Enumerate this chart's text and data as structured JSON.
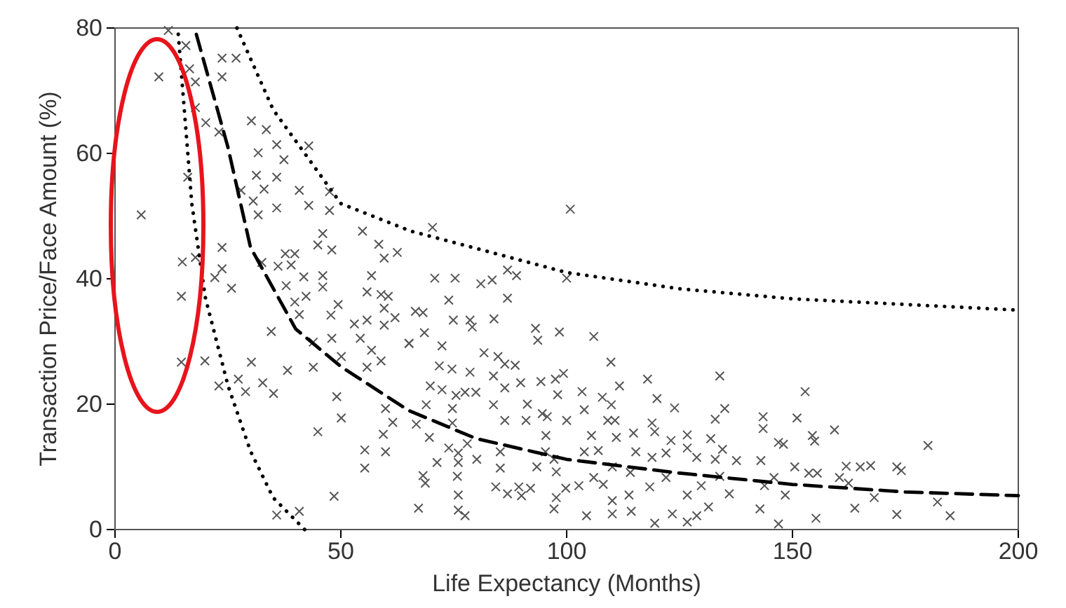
{
  "chart_data": {
    "type": "scatter",
    "xlabel": "Life Expectancy (Months)",
    "ylabel": "Transaction Price/Face Amount (%)",
    "xlim": [
      0,
      200
    ],
    "xticks": [
      0,
      50,
      100,
      150,
      200
    ],
    "ylim": [
      0,
      80
    ],
    "yticks": [
      0,
      20,
      40,
      60,
      80
    ],
    "grid": false,
    "series": [
      {
        "color": "#555555",
        "marker": "cross",
        "x": [
          11.8,
          15.7,
          9.7,
          23.7,
          26.8,
          23.7,
          16.5,
          17.8,
          17.8,
          30.2,
          33.5,
          23,
          20.1,
          35.8,
          42.9,
          31.7,
          37.4,
          31.3,
          35.8,
          16.1,
          27.9,
          33,
          30.6,
          40.8,
          47.5,
          35.8,
          42.9,
          31.7,
          5.8,
          47.5,
          46,
          54.8,
          44.9,
          48,
          23.7,
          37.7,
          39.8,
          58.4,
          62.5,
          59.6,
          14.9,
          17.8,
          32.5,
          23.7,
          36.1,
          39,
          22.1,
          41.8,
          46,
          56.8,
          46,
          37.9,
          25.8,
          14.7,
          39.8,
          42.3,
          55.8,
          58.9,
          60.5,
          40.8,
          49.4,
          47.8,
          59.6,
          62,
          53,
          55.8,
          59.6,
          34.6,
          43.9,
          48,
          54.3,
          65.1,
          50.1,
          56.8,
          14.7,
          19.9,
          30.2,
          38.2,
          43.9,
          55.8,
          58.9,
          27.3,
          23,
          28.9,
          32.7,
          35.1,
          49.1,
          50.1,
          44.9,
          59.9,
          61.5,
          59.4,
          55.3,
          59.9,
          55.3,
          48.5,
          35.8,
          40.8,
          100.8,
          70.3,
          70.8,
          75.3,
          81,
          83.5,
          86.9,
          88.9,
          100,
          86.9,
          73.9,
          66.5,
          68.2,
          74.9,
          78.6,
          79.1,
          83.9,
          93.1,
          93.6,
          98.4,
          106,
          68.5,
          65.1,
          72.4,
          81.7,
          84.8,
          86.3,
          88.6,
          71.8,
          74.6,
          78.6,
          83.8,
          89.8,
          94.3,
          97.5,
          99.3,
          109.8,
          111.7,
          117.9,
          69.8,
          72.4,
          75.5,
          77.5,
          79.9,
          86.3,
          98,
          103.4,
          107.9,
          120,
          68.9,
          74.7,
          83.8,
          91.3,
          94.6,
          103.9,
          109.9,
          123.9,
          86.3,
          91,
          95.7,
          100,
          109.1,
          110.7,
          66.7,
          74.7,
          118.9,
          95.4,
          105.5,
          111,
          114.8,
          119.5,
          123.1,
          126.7,
          69.6,
          73.9,
          76,
          78,
          80.1,
          85.3,
          95.3,
          97.2,
          103.9,
          107,
          115.3,
          118.9,
          122,
          126.7,
          128.8,
          71.3,
          76,
          85.3,
          93.4,
          97.7,
          110.1,
          114.1,
          68.2,
          75.8,
          106,
          122,
          68.7,
          84.3,
          89.4,
          92,
          99.8,
          102.7,
          108.1,
          118.4,
          129.8,
          76,
          86.9,
          90,
          97.7,
          110.1,
          113.8,
          126.7,
          67.2,
          76,
          77.5,
          97.2,
          104.4,
          110.1,
          114.3,
          119.5,
          123.4,
          126.7,
          128.8,
          133.9,
          152.8,
          135,
          132.9,
          143.5,
          143.5,
          151,
          159.3,
          131.9,
          154.4,
          154.9,
          146.9,
          148,
          134.5,
          180,
          132.9,
          137.6,
          143,
          150.5,
          153.6,
          155.5,
          161.9,
          165,
          167.3,
          173.1,
          174.1,
          160.4,
          145.9,
          133.9,
          143.8,
          162.4,
          168.1,
          136,
          148.4,
          182.1,
          131.4,
          142.8,
          163.8,
          155.2,
          146.9,
          173.1,
          184.9
        ],
        "values": [
          79.6,
          77.2,
          72.2,
          75.2,
          75.2,
          72.2,
          73.5,
          71.4,
          67.3,
          65.2,
          63.8,
          63.4,
          64.9,
          61.4,
          61.2,
          60.1,
          59,
          56.5,
          56.2,
          56.2,
          54.1,
          54.3,
          52.4,
          54.1,
          53.9,
          51.3,
          51.7,
          50.2,
          50.2,
          50.9,
          47.2,
          47.6,
          45.4,
          44.6,
          45,
          44,
          44,
          45.5,
          44.2,
          43.3,
          42.7,
          43.4,
          42.6,
          41.6,
          42,
          42.2,
          40.2,
          40.3,
          40.5,
          40.5,
          38.7,
          38.9,
          38.5,
          37.2,
          36.3,
          37.2,
          37.9,
          37.5,
          37.2,
          34.3,
          35.9,
          34.2,
          35.3,
          33.8,
          32.8,
          33.4,
          32.6,
          31.6,
          29.9,
          30.5,
          30.5,
          29.7,
          27.6,
          28.6,
          26.7,
          26.9,
          26.7,
          25.4,
          25.9,
          25.9,
          26.9,
          24,
          22.9,
          22,
          23.4,
          21.7,
          21.2,
          17.8,
          15.6,
          19.3,
          17.1,
          15.2,
          12.7,
          12.4,
          9.8,
          5.3,
          2.3,
          2.9,
          51.1,
          48.2,
          40.1,
          40.1,
          39.2,
          39.8,
          41.4,
          40.5,
          40.1,
          36.9,
          36.6,
          34.8,
          34.6,
          33.4,
          33.4,
          32.3,
          33.6,
          32.1,
          30.2,
          31.5,
          30.8,
          31.4,
          29.7,
          29.3,
          28.2,
          27.6,
          26.4,
          26.2,
          26.1,
          25.6,
          25.1,
          24.5,
          23.4,
          23.6,
          24,
          24.9,
          26.7,
          22.9,
          24,
          22.9,
          22.3,
          21.4,
          21.9,
          21.9,
          22.6,
          21.5,
          22,
          21.1,
          20.9,
          19.9,
          19.3,
          19.9,
          20,
          18.5,
          19.1,
          19.9,
          19.4,
          17.4,
          17.4,
          18,
          17.4,
          17.4,
          17.4,
          16.8,
          17,
          17,
          15,
          15,
          14.7,
          15.4,
          15.6,
          14.2,
          15.1,
          14.7,
          13,
          12.2,
          13.7,
          11.2,
          12.4,
          12.4,
          11.2,
          12.4,
          12.6,
          12.4,
          11.5,
          12.2,
          13,
          11.5,
          10.7,
          10.7,
          9.8,
          10,
          9.2,
          10,
          9.1,
          8.6,
          8.5,
          8.3,
          8.3,
          7.4,
          6.8,
          6.8,
          6.6,
          6.6,
          7,
          7.2,
          6.8,
          7,
          5.5,
          5.7,
          5.4,
          5.1,
          4.6,
          5.5,
          5.5,
          3.4,
          3.1,
          2.2,
          3.3,
          2.2,
          2.5,
          2.9,
          1,
          2.5,
          1.2,
          2.2,
          24.5,
          22,
          19.3,
          17.6,
          18,
          16.1,
          17.8,
          15.9,
          14.5,
          15,
          14.1,
          13.9,
          13.6,
          12.8,
          13.4,
          11.2,
          11,
          11,
          10,
          9,
          9,
          10.1,
          10,
          10.2,
          10,
          9.4,
          8.3,
          8.3,
          8.5,
          7,
          7.4,
          5.1,
          5.7,
          5.5,
          4.4,
          3.6,
          3.3,
          3.4,
          1.8,
          0.9,
          2.4,
          2.2
        ]
      },
      {
        "type": "line",
        "color": "#000000",
        "line_style": "dashed",
        "marker": "none",
        "x": [
          18,
          25,
          30,
          40,
          50,
          65,
          80,
          100,
          125,
          150,
          175,
          200
        ],
        "values": [
          79,
          61,
          45,
          32,
          26,
          19,
          14.5,
          11.2,
          9,
          7.2,
          6,
          5.4
        ]
      },
      {
        "type": "line",
        "color": "#000000",
        "line_style": "dotted",
        "marker": "none",
        "x": [
          27,
          35,
          50,
          65.5,
          75,
          100,
          125,
          150,
          200
        ],
        "values": [
          80,
          67,
          52,
          47.6,
          45.8,
          41,
          38.4,
          36.8,
          35
        ]
      },
      {
        "type": "line",
        "color": "#000000",
        "line_style": "dotted",
        "marker": "none",
        "x": [
          14,
          17,
          20,
          25,
          30,
          35,
          42
        ],
        "values": [
          79,
          52,
          37,
          23,
          12.5,
          5.1,
          0
        ]
      }
    ]
  }
}
